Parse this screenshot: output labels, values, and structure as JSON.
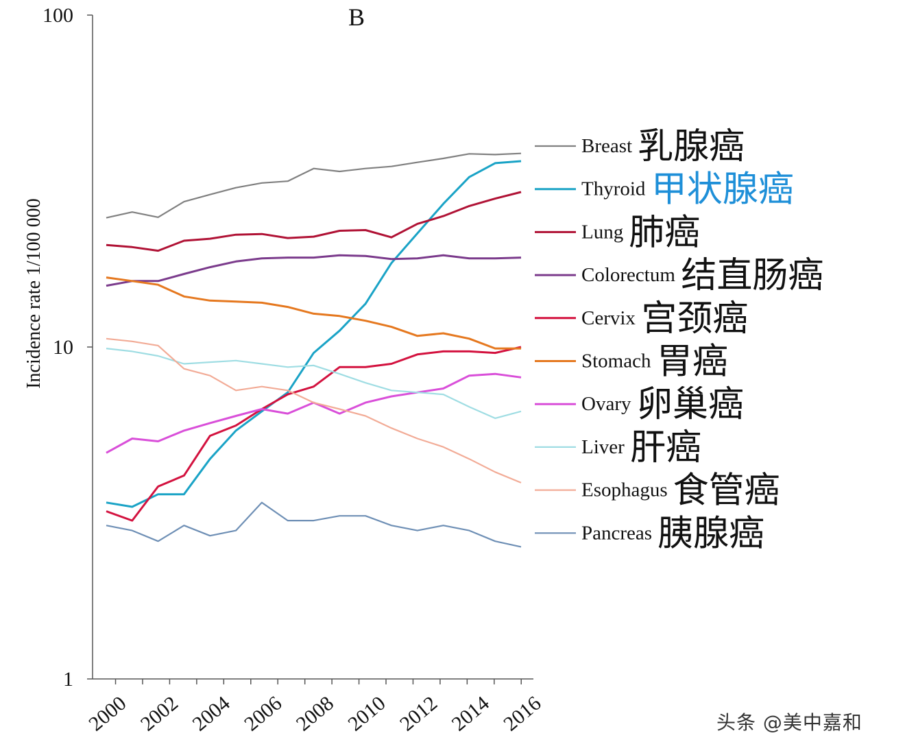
{
  "chart_data": {
    "type": "line",
    "title": "B",
    "ylabel": "Incidence rate 1/100 000",
    "y_scale": "log",
    "ylim": [
      1,
      100
    ],
    "y_ticks": [
      "1",
      "10",
      "100"
    ],
    "xlim": [
      2000,
      2016
    ],
    "x_ticks": [
      "2000",
      "2002",
      "2004",
      "2006",
      "2008",
      "2010",
      "2012",
      "2014",
      "2016"
    ],
    "x": [
      2000,
      2001,
      2002,
      2003,
      2004,
      2005,
      2006,
      2007,
      2008,
      2009,
      2010,
      2011,
      2012,
      2013,
      2014,
      2015,
      2016
    ],
    "legend_position": "right",
    "series": [
      {
        "name": "Breast",
        "label_cn": "乳腺癌",
        "color": "#7f7f7f",
        "values": [
          24.5,
          25.5,
          24.6,
          27.4,
          28.8,
          30.2,
          31.2,
          31.6,
          34.5,
          33.8,
          34.5,
          35.0,
          36.0,
          37.0,
          38.2,
          38.0,
          38.3
        ]
      },
      {
        "name": "Thyroid",
        "label_cn": "甲状腺癌",
        "color": "#1aa3c6",
        "label_cn_color": "#1e8fd8",
        "values": [
          3.4,
          3.3,
          3.6,
          3.6,
          4.6,
          5.6,
          6.4,
          7.3,
          9.6,
          11.2,
          13.5,
          17.9,
          22.0,
          27.0,
          32.5,
          35.8,
          36.3
        ]
      },
      {
        "name": "Lung",
        "label_cn": "肺癌",
        "color": "#b01235",
        "values": [
          20.3,
          20.0,
          19.5,
          20.9,
          21.2,
          21.8,
          21.9,
          21.3,
          21.5,
          22.4,
          22.5,
          21.4,
          23.5,
          24.8,
          26.6,
          28.0,
          29.3
        ]
      },
      {
        "name": "Colorectum",
        "label_cn": "结直肠癌",
        "color": "#7b3b8c",
        "values": [
          15.3,
          15.8,
          15.8,
          16.6,
          17.4,
          18.1,
          18.5,
          18.6,
          18.6,
          18.9,
          18.8,
          18.4,
          18.5,
          18.9,
          18.5,
          18.5,
          18.6
        ]
      },
      {
        "name": "Cervix",
        "label_cn": "宫颈癌",
        "color": "#d3123f",
        "values": [
          3.2,
          3.0,
          3.8,
          4.1,
          5.4,
          5.8,
          6.5,
          7.2,
          7.6,
          8.7,
          8.7,
          8.9,
          9.5,
          9.7,
          9.7,
          9.6,
          10.0
        ]
      },
      {
        "name": "Stomach",
        "label_cn": "胃癌",
        "color": "#e5781f",
        "values": [
          16.2,
          15.8,
          15.4,
          14.2,
          13.8,
          13.7,
          13.6,
          13.2,
          12.6,
          12.4,
          12.0,
          11.5,
          10.8,
          11.0,
          10.6,
          9.9,
          9.9
        ]
      },
      {
        "name": "Ovary",
        "label_cn": "卵巢癌",
        "color": "#d94fd9",
        "values": [
          4.8,
          5.3,
          5.2,
          5.6,
          5.9,
          6.2,
          6.5,
          6.3,
          6.8,
          6.3,
          6.8,
          7.1,
          7.3,
          7.5,
          8.2,
          8.3,
          8.1
        ]
      },
      {
        "name": "Liver",
        "label_cn": "肝癌",
        "color": "#9fdde3",
        "values": [
          9.9,
          9.7,
          9.4,
          8.9,
          9.0,
          9.1,
          8.9,
          8.7,
          8.8,
          8.3,
          7.8,
          7.4,
          7.3,
          7.2,
          6.6,
          6.1,
          6.4
        ]
      },
      {
        "name": "Esophagus",
        "label_cn": "食管癌",
        "color": "#f2ab96",
        "values": [
          10.6,
          10.4,
          10.1,
          8.6,
          8.2,
          7.4,
          7.6,
          7.4,
          6.8,
          6.5,
          6.2,
          5.7,
          5.3,
          5.0,
          4.6,
          4.2,
          3.9
        ]
      },
      {
        "name": "Pancreas",
        "label_cn": "胰腺癌",
        "color": "#6e8fb5",
        "values": [
          2.9,
          2.8,
          2.6,
          2.9,
          2.7,
          2.8,
          3.4,
          3.0,
          3.0,
          3.1,
          3.1,
          2.9,
          2.8,
          2.9,
          2.8,
          2.6,
          2.5
        ]
      }
    ]
  },
  "watermark": "头条 @美中嘉和"
}
